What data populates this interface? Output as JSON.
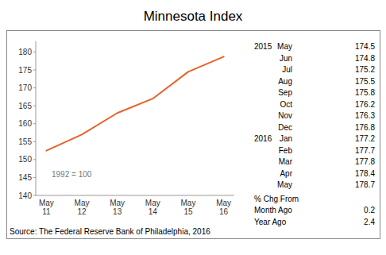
{
  "chart_data": {
    "type": "line",
    "title": "Minnesota Index",
    "categories": [
      "May\n11",
      "May\n12",
      "May\n13",
      "May\n14",
      "May\n15",
      "May\n16"
    ],
    "values": [
      152.5,
      157.0,
      163.0,
      167.0,
      174.5,
      178.7
    ],
    "color": "#E8622A",
    "ylim": [
      140,
      183
    ],
    "yticks": [
      140,
      145,
      150,
      155,
      160,
      165,
      170,
      175,
      180
    ],
    "annotations": [
      "1992 = 100"
    ],
    "source": "Source: The Federal Reserve Bank of Philadelphia, 2016",
    "table": {
      "rows": [
        {
          "year": "2015",
          "month": "May",
          "value": 174.5
        },
        {
          "month": "Jun",
          "value": 174.8
        },
        {
          "month": "Jul",
          "value": 175.2
        },
        {
          "month": "Aug",
          "value": 175.5
        },
        {
          "month": "Sep",
          "value": 175.8
        },
        {
          "month": "Oct",
          "value": 176.2
        },
        {
          "month": "Nov",
          "value": 176.3
        },
        {
          "month": "Dec",
          "value": 176.8
        },
        {
          "year": "2016",
          "month": "Jan",
          "value": 177.2
        },
        {
          "month": "Feb",
          "value": 177.7
        },
        {
          "month": "Mar",
          "value": 177.8
        },
        {
          "month": "Apr",
          "value": 178.4
        },
        {
          "month": "May",
          "value": 178.7
        }
      ],
      "change": {
        "label": "% Chg From",
        "rows": [
          {
            "label": "Month Ago",
            "value": 0.2
          },
          {
            "label": "Year Ago",
            "value": 2.4
          }
        ]
      }
    }
  }
}
